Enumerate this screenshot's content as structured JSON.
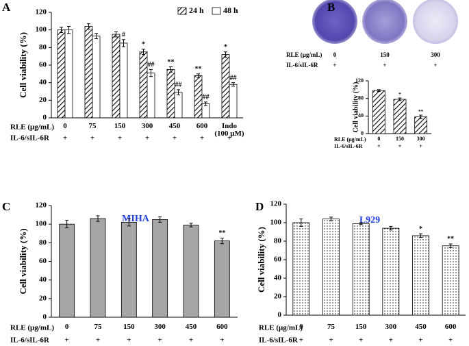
{
  "chart_data": [
    {
      "type": "bar",
      "panel": "A",
      "ylabel": "Cell viability (%)",
      "categories": [
        "0",
        "75",
        "150",
        "300",
        "450",
        "600",
        "Indo (100 μM)"
      ],
      "row_labels": [
        "RLE (μg/mL)",
        "IL-6/sIL-6R"
      ],
      "treatment": [
        "+",
        "+",
        "+",
        "+",
        "+",
        "+",
        "+"
      ],
      "series": [
        {
          "name": "24 h",
          "color": "#000000",
          "pattern": "hatch",
          "values": [
            100,
            104,
            95,
            75,
            55,
            48,
            72
          ],
          "errors": [
            3,
            3,
            3,
            3,
            3,
            2,
            3
          ],
          "annotations": [
            null,
            null,
            null,
            "*",
            "**",
            "**",
            "*"
          ]
        },
        {
          "name": "48 h",
          "color": "#ffffff",
          "pattern": "none",
          "values": [
            100,
            93,
            85,
            51,
            29,
            16,
            38
          ],
          "errors": [
            4,
            3,
            4,
            4,
            3,
            2,
            2
          ],
          "annotations": [
            null,
            null,
            "#",
            "##",
            "##",
            "##",
            "##"
          ]
        }
      ],
      "ylim": [
        0,
        120
      ],
      "yticks": [
        0,
        20,
        40,
        60,
        80,
        100,
        120
      ],
      "legend": "top-right"
    },
    {
      "type": "bar",
      "panel": "B",
      "ylabel": "Cell viability (%)",
      "categories": [
        "0",
        "150",
        "300"
      ],
      "row_labels": [
        "RLE (μg/mL)",
        "IL-6/sIL-6R"
      ],
      "treatment": [
        "+",
        "+",
        "+"
      ],
      "color": "#000000",
      "pattern": "hatch",
      "values": [
        98,
        78,
        38
      ],
      "errors": [
        2,
        3,
        4
      ],
      "annotations": [
        null,
        "*",
        "**"
      ],
      "ylim": [
        0,
        120
      ],
      "yticks": [
        0,
        40,
        80,
        120
      ]
    },
    {
      "type": "bar",
      "panel": "C",
      "title": "MIHA",
      "title_color": "#1f3fdc",
      "ylabel": "Cell viability (%)",
      "categories": [
        "0",
        "75",
        "150",
        "300",
        "450",
        "600"
      ],
      "row_labels": [
        "RLE (μg/mL)",
        "IL-6/sIL-6R"
      ],
      "treatment": [
        "+",
        "+",
        "+",
        "+",
        "+",
        "+"
      ],
      "color": "#a6a6a6",
      "pattern": "none",
      "values": [
        100,
        106,
        102,
        105,
        99,
        82
      ],
      "errors": [
        4,
        3,
        4,
        3,
        2,
        3
      ],
      "annotations": [
        null,
        null,
        null,
        null,
        null,
        "**"
      ],
      "ylim": [
        0,
        120
      ],
      "yticks": [
        0,
        20,
        40,
        60,
        80,
        100,
        120
      ]
    },
    {
      "type": "bar",
      "panel": "D",
      "title": "L929",
      "title_color": "#1f3fdc",
      "ylabel": "Cell viability (%)",
      "categories": [
        "0",
        "75",
        "150",
        "300",
        "450",
        "600"
      ],
      "row_labels": [
        "RLE (μg/mL)",
        "IL-6/sIL-6R"
      ],
      "treatment": [
        "+",
        "+",
        "+",
        "+",
        "+",
        "+"
      ],
      "color": "#000000",
      "pattern": "dots",
      "values": [
        100,
        104,
        99,
        94,
        86,
        75
      ],
      "errors": [
        4,
        2,
        1,
        2,
        2,
        2
      ],
      "annotations": [
        null,
        null,
        null,
        null,
        "*",
        "**"
      ],
      "ylim": [
        0,
        120
      ],
      "yticks": [
        0,
        20,
        40,
        60,
        80,
        100,
        120
      ]
    }
  ]
}
